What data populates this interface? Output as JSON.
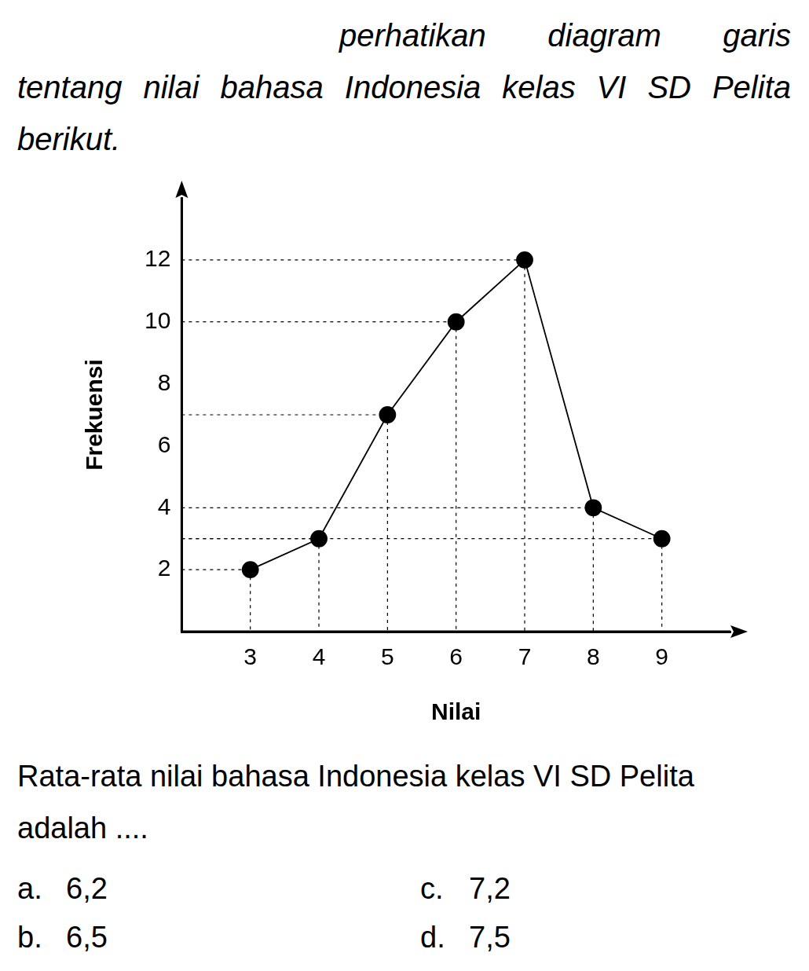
{
  "intro": "perhatikan diagram garis tentang nilai bahasa Indonesia kelas VI SD Pelita berikut.",
  "chart_data": {
    "type": "line",
    "x_label": "Nilai",
    "y_label": "Frekuensi",
    "x": [
      3,
      4,
      5,
      6,
      7,
      8,
      9
    ],
    "values": [
      2,
      3,
      7,
      10,
      12,
      4,
      3
    ],
    "color": "#000000",
    "marker": "circle",
    "xlim": [
      2,
      10
    ],
    "xticks": [
      3,
      4,
      5,
      6,
      7,
      8,
      9
    ],
    "ylim": [
      0,
      14
    ],
    "yticks": [
      2,
      4,
      6,
      8,
      10,
      12
    ],
    "grid": false
  },
  "question": "Rata-rata nilai bahasa Indonesia kelas VI SD Pelita adalah ....",
  "options": [
    {
      "letter": "a.",
      "text": "6,2"
    },
    {
      "letter": "b.",
      "text": "6,5"
    },
    {
      "letter": "c.",
      "text": "7,2"
    },
    {
      "letter": "d.",
      "text": "7,5"
    }
  ]
}
